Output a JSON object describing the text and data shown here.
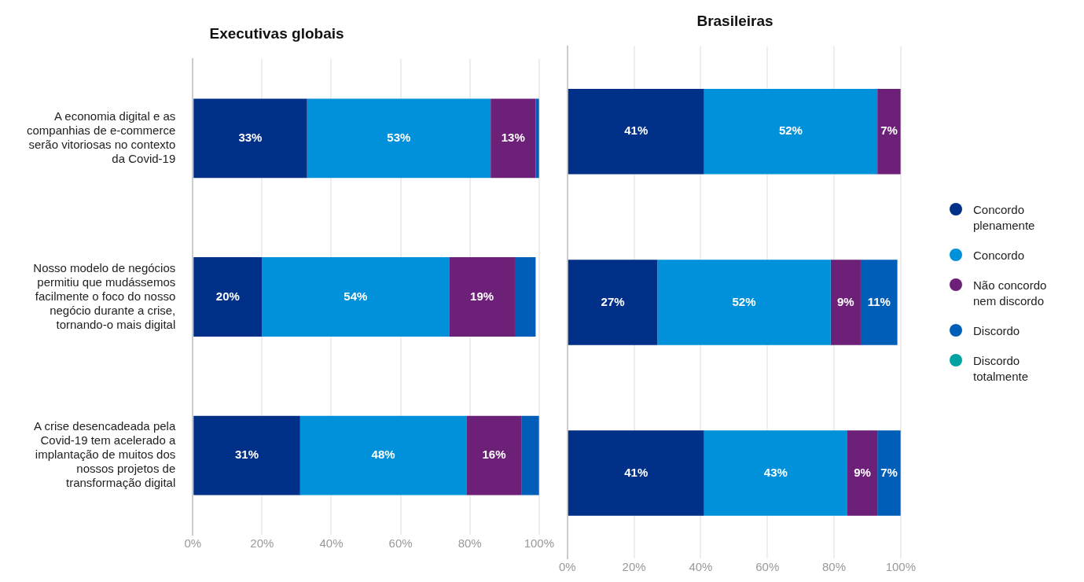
{
  "chart_data": [
    {
      "type": "bar",
      "orientation": "horizontal",
      "stacked": true,
      "title": "Executivas globais",
      "categories": [
        "A economia digital e as companhias de e-commerce serão vitoriosas no contexto da Covid-19",
        "Nosso modelo de negócios permitiu que mudássemos facilmente o foco do nosso negócio durante a crise, tornando-o mais digital",
        "A crise desencadeada pela Covid-19 tem acelerado a implantação de muitos dos nossos projetos de transformação digital"
      ],
      "series": [
        {
          "color": "#003087",
          "values": [
            33,
            20,
            31
          ],
          "value_labels": [
            "33%",
            "20%",
            "31%"
          ]
        },
        {
          "color": "#0091da",
          "values": [
            53,
            54,
            48
          ],
          "value_labels": [
            "53%",
            "54%",
            "48%"
          ]
        },
        {
          "color": "#6d2077",
          "values": [
            13,
            19,
            16
          ],
          "value_labels": [
            "13%",
            "19%",
            "16%"
          ]
        },
        {
          "color": "#005eb8",
          "values": [
            1,
            6,
            5
          ],
          "value_labels": [
            null,
            null,
            null
          ]
        }
      ],
      "xlim": [
        0,
        100
      ],
      "xticks": [
        {
          "value": 0,
          "label": "0%"
        },
        {
          "value": 20,
          "label": "20%"
        },
        {
          "value": 40,
          "label": "40%"
        },
        {
          "value": 60,
          "label": "60%"
        },
        {
          "value": 80,
          "label": "80%"
        },
        {
          "value": 100,
          "label": "100%"
        }
      ],
      "grid": "x",
      "legend": false
    },
    {
      "type": "bar",
      "orientation": "horizontal",
      "stacked": true,
      "title": "Brasileiras",
      "categories": [
        null,
        null,
        null
      ],
      "series": [
        {
          "name": "Concordo plenamente",
          "color": "#003087",
          "values": [
            41,
            27,
            41
          ],
          "value_labels": [
            "41%",
            "27%",
            "41%"
          ]
        },
        {
          "name": "Concordo",
          "color": "#0091da",
          "values": [
            52,
            52,
            43
          ],
          "value_labels": [
            "52%",
            "52%",
            "43%"
          ]
        },
        {
          "name": "Não concordo nem discordo",
          "color": "#6d2077",
          "values": [
            7,
            9,
            9
          ],
          "value_labels": [
            "7%",
            "9%",
            "9%"
          ]
        },
        {
          "name": "Discordo",
          "color": "#005eb8",
          "values": [
            null,
            11,
            7
          ],
          "value_labels": [
            null,
            "11%",
            "7%"
          ]
        },
        {
          "name": "Discordo totalmente",
          "color": "#00a3a1",
          "values": [
            null,
            null,
            null
          ]
        }
      ],
      "xlim": [
        0,
        100
      ],
      "xticks": [
        {
          "value": 0,
          "label": "0%"
        },
        {
          "value": 20,
          "label": "20%"
        },
        {
          "value": 40,
          "label": "40%"
        },
        {
          "value": 60,
          "label": "60%"
        },
        {
          "value": 80,
          "label": "80%"
        },
        {
          "value": 100,
          "label": "100%"
        }
      ],
      "grid": "x",
      "legend": "right",
      "tick_labels": "x"
    }
  ]
}
